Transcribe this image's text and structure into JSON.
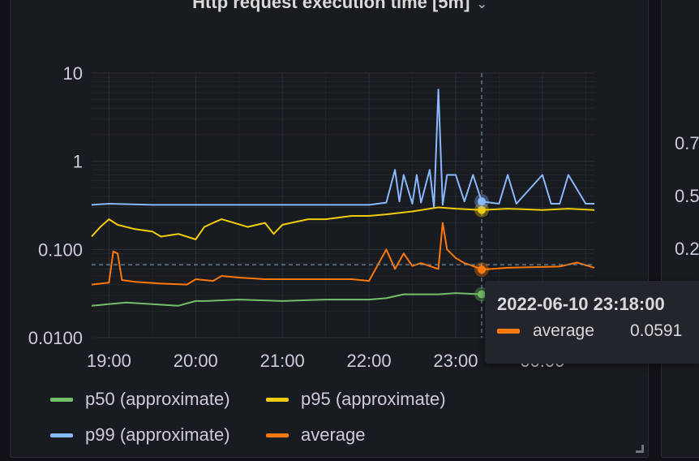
{
  "panel": {
    "title": "Http request execution time [5m]"
  },
  "chart_data": {
    "type": "line",
    "title": "Http request execution time [5m]",
    "yscale": "log",
    "ylim": [
      0.01,
      10
    ],
    "yticks": [
      "10",
      "1",
      "0.100",
      "0.0100"
    ],
    "xlim": [
      18.8,
      24.6
    ],
    "xticks": [
      "19:00",
      "20:00",
      "21:00",
      "22:00",
      "23:00",
      "00:00"
    ],
    "grid": true,
    "legend_placement": "bottom",
    "crosshair_x": 23.3,
    "series": [
      {
        "name": "p50 (approximate)",
        "color": "#73bf69",
        "x": [
          18.8,
          19.2,
          19.5,
          19.8,
          20.0,
          20.1,
          20.5,
          21.0,
          21.5,
          22.0,
          22.2,
          22.4,
          22.6,
          22.8,
          23.0,
          23.3
        ],
        "y": [
          0.023,
          0.025,
          0.024,
          0.023,
          0.026,
          0.026,
          0.027,
          0.026,
          0.027,
          0.027,
          0.028,
          0.031,
          0.031,
          0.031,
          0.032,
          0.031
        ]
      },
      {
        "name": "p95 (approximate)",
        "color": "#f2cc0c",
        "x": [
          18.8,
          18.9,
          19.0,
          19.1,
          19.3,
          19.5,
          19.6,
          19.8,
          20.0,
          20.1,
          20.2,
          20.3,
          20.6,
          20.8,
          20.9,
          21.0,
          21.1,
          21.3,
          21.5,
          21.8,
          22.0,
          22.2,
          22.5,
          22.8,
          23.0,
          23.3,
          23.6,
          24.0,
          24.3,
          24.6
        ],
        "y": [
          0.14,
          0.18,
          0.22,
          0.19,
          0.17,
          0.16,
          0.14,
          0.15,
          0.13,
          0.18,
          0.2,
          0.22,
          0.18,
          0.2,
          0.15,
          0.19,
          0.2,
          0.22,
          0.22,
          0.24,
          0.24,
          0.25,
          0.27,
          0.3,
          0.29,
          0.28,
          0.29,
          0.28,
          0.29,
          0.28
        ]
      },
      {
        "name": "p99 (approximate)",
        "color": "#8ab8ff",
        "x": [
          18.8,
          19.0,
          19.5,
          20.0,
          20.5,
          21.0,
          21.5,
          22.0,
          22.2,
          22.3,
          22.35,
          22.4,
          22.5,
          22.55,
          22.6,
          22.7,
          22.75,
          22.8,
          22.85,
          22.9,
          23.0,
          23.1,
          23.2,
          23.3,
          23.5,
          23.6,
          23.7,
          24.0,
          24.1,
          24.2,
          24.3,
          24.5,
          24.6
        ],
        "y": [
          0.32,
          0.33,
          0.32,
          0.32,
          0.32,
          0.32,
          0.32,
          0.32,
          0.34,
          0.8,
          0.35,
          0.7,
          0.33,
          0.7,
          0.34,
          0.8,
          0.3,
          6.5,
          0.32,
          0.7,
          0.7,
          0.35,
          0.7,
          0.35,
          0.33,
          0.7,
          0.33,
          0.7,
          0.33,
          0.33,
          0.7,
          0.33,
          0.33
        ]
      },
      {
        "name": "average",
        "color": "#ff780a",
        "x": [
          18.8,
          19.0,
          19.05,
          19.1,
          19.15,
          19.3,
          19.6,
          19.9,
          20.0,
          20.2,
          20.3,
          20.5,
          20.8,
          21.0,
          21.4,
          21.8,
          22.0,
          22.2,
          22.3,
          22.4,
          22.5,
          22.6,
          22.8,
          22.85,
          22.9,
          23.0,
          23.1,
          23.2,
          23.3,
          23.6,
          23.9,
          24.2,
          24.4,
          24.6
        ],
        "y": [
          0.04,
          0.042,
          0.095,
          0.09,
          0.045,
          0.043,
          0.041,
          0.04,
          0.046,
          0.044,
          0.05,
          0.048,
          0.046,
          0.046,
          0.046,
          0.046,
          0.044,
          0.1,
          0.06,
          0.09,
          0.065,
          0.07,
          0.06,
          0.2,
          0.1,
          0.08,
          0.07,
          0.065,
          0.0591,
          0.062,
          0.063,
          0.064,
          0.071,
          0.062
        ]
      }
    ]
  },
  "tooltip": {
    "time": "2022-06-10 23:18:00",
    "series_name": "average",
    "value": "0.0591"
  },
  "legend": {
    "items": [
      {
        "label": "p50 (approximate)",
        "color": "#73bf69"
      },
      {
        "label": "p95 (approximate)",
        "color": "#f2cc0c"
      },
      {
        "label": "p99 (approximate)",
        "color": "#8ab8ff"
      },
      {
        "label": "average",
        "color": "#ff780a"
      }
    ]
  },
  "right_panel": {
    "ticks": [
      "0.7",
      "0.5",
      "0.2"
    ]
  }
}
